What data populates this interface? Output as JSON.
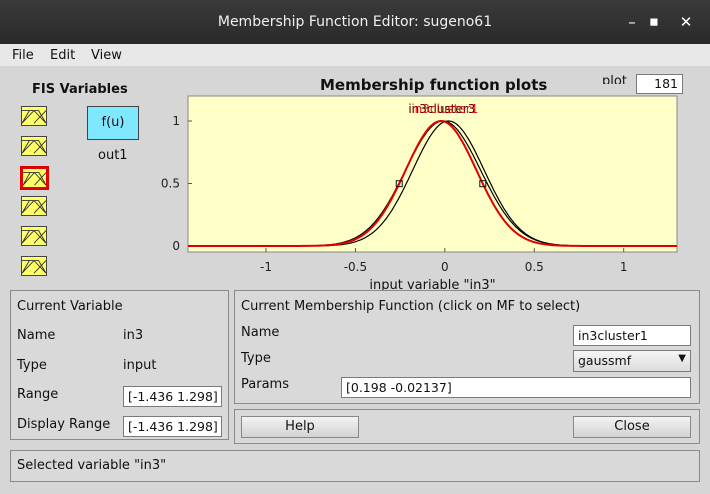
{
  "window": {
    "title": "Membership Function Editor: sugeno61"
  },
  "menu": {
    "items": [
      "File",
      "Edit",
      "View"
    ]
  },
  "fis": {
    "heading": "FIS Variables",
    "output_label": "f(u)",
    "output_name": "out1",
    "input_count": 6,
    "selected_input_index": 2
  },
  "plot": {
    "title": "Membership function plots",
    "points_label": "plot",
    "points_value": "181",
    "mf_labels_overlapping": "in3cluster3",
    "xlabel": "input variable \"in3\"",
    "colors": {
      "background": "#ffffc8",
      "selected": "#e00000",
      "other": "#000000"
    }
  },
  "chart_data": {
    "type": "line",
    "title": "Membership function plots",
    "xlabel": "input variable \"in3\"",
    "xlim": [
      -1.436,
      1.298
    ],
    "ylim": [
      0,
      1
    ],
    "xticks": [
      "-1",
      "-0.5",
      "0",
      "0.5",
      "1"
    ],
    "yticks": [
      "0",
      "0.5",
      "1"
    ],
    "series": [
      {
        "name": "in3cluster1",
        "mf": "gaussmf",
        "sigma": 0.198,
        "center": -0.02137,
        "selected": true
      },
      {
        "name": "in3cluster2",
        "mf": "gaussmf",
        "sigma": 0.21,
        "center": -0.01
      },
      {
        "name": "in3cluster3",
        "mf": "gaussmf",
        "sigma": 0.2,
        "center": 0.02
      }
    ]
  },
  "current_variable": {
    "heading": "Current Variable",
    "name_label": "Name",
    "name_value": "in3",
    "type_label": "Type",
    "type_value": "input",
    "range_label": "Range",
    "range_value": "[-1.436 1.298]",
    "display_range_label": "Display Range",
    "display_range_value": "[-1.436 1.298]"
  },
  "current_mf": {
    "heading": "Current Membership Function (click on MF to select)",
    "name_label": "Name",
    "name_value": "in3cluster1",
    "type_label": "Type",
    "type_value": "gaussmf",
    "params_label": "Params",
    "params_value": "[0.198 -0.02137]"
  },
  "buttons": {
    "help": "Help",
    "close": "Close"
  },
  "status": {
    "text": "Selected variable \"in3\""
  }
}
